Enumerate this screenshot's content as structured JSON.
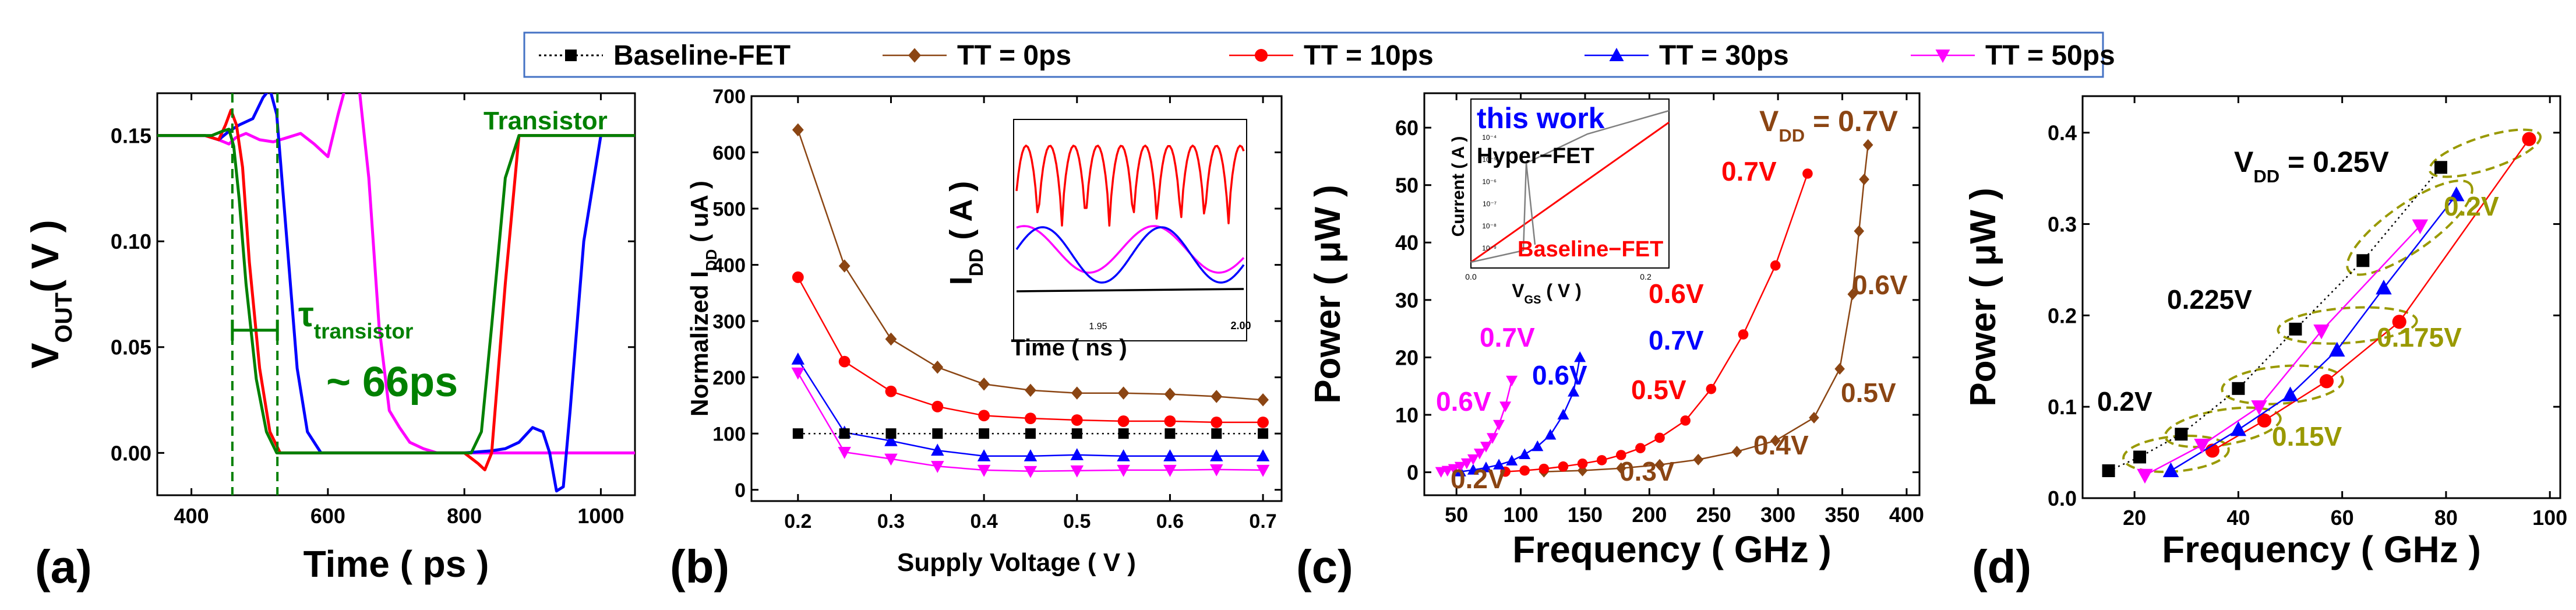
{
  "legend": {
    "entries": [
      {
        "label": "Baseline-FET",
        "color": "#000000",
        "marker": "square",
        "line": "dotted"
      },
      {
        "label": "TT = 0ps",
        "color": "#8B4513",
        "marker": "diamond",
        "line": "solid"
      },
      {
        "label": "TT = 10ps",
        "color": "#FF0000",
        "marker": "circle",
        "line": "solid"
      },
      {
        "label": "TT = 30ps",
        "color": "#0000FF",
        "marker": "triangle-up",
        "line": "solid"
      },
      {
        "label": "TT = 50ps",
        "color": "#FF00FF",
        "marker": "triangle-down",
        "line": "solid"
      }
    ]
  },
  "chart_data": [
    {
      "id": "a",
      "panel_label": "(a)",
      "type": "line",
      "xlabel": "Time ( ps )",
      "ylabel_main": "V",
      "ylabel_sub": "OUT",
      "ylabel_unit": "( V )",
      "xlim": [
        350,
        1050
      ],
      "ylim": [
        -0.02,
        0.17
      ],
      "xticks": [
        400,
        600,
        800,
        1000
      ],
      "yticks": [
        0.0,
        0.05,
        0.1,
        0.15
      ],
      "ytick_labels": [
        "0.00",
        "0.05",
        "0.10",
        "0.15"
      ],
      "vlines": [
        460,
        526
      ],
      "annotations": {
        "transistor": "Transistor",
        "tau": "τ",
        "tau_sub": "transistor",
        "delay": "~ 66ps"
      },
      "series": [
        {
          "name": "magenta",
          "color": "#FF00FF",
          "x": [
            350,
            420,
            440,
            455,
            465,
            480,
            500,
            520,
            540,
            560,
            580,
            600,
            615,
            630,
            645,
            660,
            675,
            690,
            705,
            720,
            740,
            760,
            780,
            800,
            830,
            860,
            900,
            950,
            1000,
            1050
          ],
          "y": [
            0.15,
            0.15,
            0.148,
            0.146,
            0.149,
            0.151,
            0.148,
            0.147,
            0.149,
            0.151,
            0.146,
            0.14,
            0.16,
            0.178,
            0.175,
            0.13,
            0.06,
            0.02,
            0.012,
            0.005,
            0.002,
            0.0,
            0.0,
            0.0,
            0.0,
            0.0,
            0.0,
            0.0,
            0.0,
            0.0
          ]
        },
        {
          "name": "blue",
          "color": "#0000FF",
          "x": [
            350,
            420,
            440,
            455,
            470,
            490,
            505,
            515,
            525,
            540,
            555,
            570,
            590,
            620,
            700,
            800,
            840,
            860,
            880,
            900,
            915,
            925,
            935,
            945,
            955,
            975,
            1000,
            1050
          ],
          "y": [
            0.15,
            0.15,
            0.148,
            0.152,
            0.155,
            0.158,
            0.168,
            0.172,
            0.16,
            0.1,
            0.04,
            0.01,
            0.0,
            0.0,
            0.0,
            0.0,
            0.001,
            0.002,
            0.005,
            0.012,
            0.01,
            0.0,
            -0.018,
            -0.016,
            0.02,
            0.1,
            0.15,
            0.15
          ]
        },
        {
          "name": "red",
          "color": "#FF0000",
          "x": [
            350,
            420,
            440,
            450,
            458,
            466,
            475,
            485,
            500,
            515,
            530,
            560,
            700,
            800,
            820,
            830,
            840,
            860,
            880,
            900,
            1050
          ],
          "y": [
            0.15,
            0.15,
            0.148,
            0.155,
            0.162,
            0.155,
            0.135,
            0.09,
            0.04,
            0.01,
            0.0,
            0.0,
            0.0,
            0.0,
            -0.005,
            -0.008,
            0.0,
            0.08,
            0.15,
            0.15,
            0.15
          ]
        },
        {
          "name": "green",
          "color": "#008000",
          "x": [
            350,
            430,
            445,
            455,
            462,
            470,
            480,
            495,
            510,
            525,
            545,
            700,
            810,
            825,
            840,
            860,
            880,
            900,
            1050
          ],
          "y": [
            0.15,
            0.15,
            0.152,
            0.153,
            0.145,
            0.12,
            0.08,
            0.035,
            0.01,
            0.0,
            0.0,
            0.0,
            0.0,
            0.01,
            0.06,
            0.13,
            0.15,
            0.15,
            0.15
          ]
        }
      ]
    },
    {
      "id": "b",
      "panel_label": "(b)",
      "type": "line",
      "xlabel": "Supply Voltage ( V )",
      "ylabel_pre": "Normalized I",
      "ylabel_sub": "DD",
      "ylabel_post": " ( uA )",
      "xlim": [
        0.15,
        0.72
      ],
      "ylim": [
        -20,
        700
      ],
      "xticks": [
        0.2,
        0.3,
        0.4,
        0.5,
        0.6,
        0.7
      ],
      "yticks": [
        0,
        100,
        200,
        300,
        400,
        500,
        600,
        700
      ],
      "x": [
        0.2,
        0.25,
        0.3,
        0.35,
        0.4,
        0.45,
        0.5,
        0.55,
        0.6,
        0.65,
        0.7
      ],
      "series": [
        {
          "name": "TT = 0ps",
          "color": "#8B4513",
          "marker": "diamond",
          "values": [
            640,
            398,
            268,
            218,
            188,
            177,
            172,
            172,
            170,
            166,
            160
          ]
        },
        {
          "name": "TT = 10ps",
          "color": "#FF0000",
          "marker": "circle",
          "values": [
            378,
            228,
            175,
            148,
            132,
            127,
            124,
            122,
            122,
            120,
            120
          ]
        },
        {
          "name": "TT = 30ps",
          "color": "#0000FF",
          "marker": "triangle-up",
          "values": [
            232,
            102,
            87,
            70,
            60,
            60,
            62,
            60,
            60,
            60,
            60
          ]
        },
        {
          "name": "TT = 50ps",
          "color": "#FF00FF",
          "marker": "triangle-down",
          "values": [
            208,
            67,
            55,
            42,
            35,
            33,
            34,
            35,
            35,
            36,
            35
          ]
        },
        {
          "name": "Baseline-FET",
          "color": "#000000",
          "marker": "square",
          "values": [
            100,
            100,
            100,
            100,
            100,
            100,
            100,
            100,
            100,
            100,
            100
          ]
        }
      ],
      "inset": {
        "ylabel_pre": "I",
        "ylabel_sub": "DD",
        "ylabel_post": " ( A )",
        "xlabel": "Time ( ns )",
        "xticks_labels": [
          "1.95",
          "2.00"
        ]
      }
    },
    {
      "id": "c",
      "panel_label": "(c)",
      "type": "line",
      "xlabel": "Frequency ( GHz )",
      "ylabel": "Power ( μW )",
      "xlim": [
        25,
        410
      ],
      "ylim": [
        -4,
        66
      ],
      "xticks": [
        50,
        100,
        150,
        200,
        250,
        300,
        350,
        400
      ],
      "yticks": [
        0,
        10,
        20,
        30,
        40,
        50,
        60
      ],
      "series": [
        {
          "name": "TT = 0ps",
          "color": "#8B4513",
          "marker": "diamond",
          "x": [
            118,
            148,
            178,
            208,
            238,
            268,
            298,
            328,
            348,
            358,
            363,
            367,
            370
          ],
          "y": [
            0.1,
            0.3,
            0.7,
            1.3,
            2.2,
            3.6,
            5.5,
            9.5,
            18,
            31,
            42,
            51,
            57
          ]
        },
        {
          "name": "TT = 10ps",
          "color": "#FF0000",
          "marker": "circle",
          "x": [
            88,
            103,
            118,
            133,
            148,
            163,
            178,
            193,
            208,
            228,
            248,
            273,
            298,
            323
          ],
          "y": [
            0.1,
            0.3,
            0.6,
            1.0,
            1.5,
            2.1,
            3.0,
            4.2,
            6,
            9,
            14.5,
            24,
            36,
            52
          ]
        },
        {
          "name": "TT = 30ps",
          "color": "#0000FF",
          "marker": "triangle-up",
          "x": [
            53,
            63,
            73,
            83,
            93,
            103,
            113,
            123,
            133,
            141,
            146
          ],
          "y": [
            0.1,
            0.4,
            0.8,
            1.3,
            2.0,
            3.1,
            4.5,
            6.5,
            10,
            14,
            20
          ]
        },
        {
          "name": "TT = 50ps",
          "color": "#FF00FF",
          "marker": "triangle-down",
          "x": [
            38,
            43,
            48,
            53,
            58,
            63,
            68,
            73,
            78,
            83,
            88,
            93
          ],
          "y": [
            0.1,
            0.3,
            0.6,
            1.0,
            1.6,
            2.3,
            3.3,
            4.5,
            6,
            8.3,
            11.5,
            16
          ]
        }
      ],
      "annotations": [
        {
          "text": "V",
          "sub": "DD",
          "post": " = 0.7V",
          "color": "#8B4513"
        },
        {
          "text": "0.7V",
          "color": "#FF0000"
        },
        {
          "text": "0.6V",
          "color": "#FF0000"
        },
        {
          "text": "0.5V",
          "color": "#FF0000"
        },
        {
          "text": "0.6V",
          "color": "#8B4513"
        },
        {
          "text": "0.5V",
          "color": "#8B4513"
        },
        {
          "text": "0.4V",
          "color": "#8B4513"
        },
        {
          "text": "0.3V",
          "color": "#8B4513"
        },
        {
          "text": "0.2V",
          "color": "#8B4513"
        },
        {
          "text": "0.7V",
          "color": "#0000FF"
        },
        {
          "text": "0.6V",
          "color": "#0000FF"
        },
        {
          "text": "0.7V",
          "color": "#FF00FF"
        },
        {
          "text": "0.6V",
          "color": "#FF00FF"
        }
      ],
      "inset": {
        "title": "this work",
        "title_color": "#0000FF",
        "hyper_label": "Hyper−FET",
        "baseline_label": "Baseline−FET",
        "baseline_color": "#FF0000",
        "ylabel": "Current ( A )",
        "xlabel_pre": "V",
        "xlabel_sub": "GS",
        "xlabel_post": " ( V )",
        "xticks_labels": [
          "0.0",
          "0.2"
        ],
        "yticks_labels": [
          "10⁻⁴",
          "10⁻⁵",
          "10⁻⁶",
          "10⁻⁷",
          "10⁻⁸",
          "10⁻⁹"
        ]
      }
    },
    {
      "id": "d",
      "panel_label": "(d)",
      "type": "scatter",
      "xlabel": "Frequency ( GHz )",
      "ylabel": "Power ( μW )",
      "xlim": [
        10,
        102
      ],
      "ylim": [
        0.0,
        0.44
      ],
      "xticks": [
        20,
        40,
        60,
        80,
        100
      ],
      "yticks": [
        0.0,
        0.1,
        0.2,
        0.3,
        0.4
      ],
      "ytick_labels": [
        "0.0",
        "0.1",
        "0.2",
        "0.3",
        "0.4"
      ],
      "series": [
        {
          "name": "Baseline-FET",
          "color": "#000000",
          "marker": "square",
          "x": [
            15,
            21,
            29,
            40,
            51,
            64,
            79
          ],
          "y": [
            0.03,
            0.045,
            0.07,
            0.12,
            0.185,
            0.26,
            0.362
          ]
        },
        {
          "name": "TT = 10ps",
          "color": "#FF0000",
          "marker": "circle",
          "x": [
            35,
            45,
            57,
            71,
            96
          ],
          "y": [
            0.052,
            0.085,
            0.128,
            0.193,
            0.393
          ]
        },
        {
          "name": "TT = 30ps",
          "color": "#0000FF",
          "marker": "triangle-up",
          "x": [
            27,
            40,
            50,
            59,
            68,
            82
          ],
          "y": [
            0.03,
            0.075,
            0.113,
            0.162,
            0.23,
            0.332
          ]
        },
        {
          "name": "TT = 50ps",
          "color": "#FF00FF",
          "marker": "triangle-down",
          "x": [
            22,
            33,
            44,
            56,
            75
          ],
          "y": [
            0.025,
            0.058,
            0.1,
            0.183,
            0.298
          ]
        }
      ],
      "annotations": [
        {
          "text": "V",
          "sub": "DD",
          "post": " = 0.25V",
          "color": "#000000"
        },
        {
          "text": "0.225V",
          "color": "#000000"
        },
        {
          "text": "0.2V",
          "color": "#000000"
        },
        {
          "text": "0.2V",
          "color": "#999900"
        },
        {
          "text": "0.175V",
          "color": "#999900"
        },
        {
          "text": "0.15V",
          "color": "#999900"
        }
      ]
    }
  ]
}
